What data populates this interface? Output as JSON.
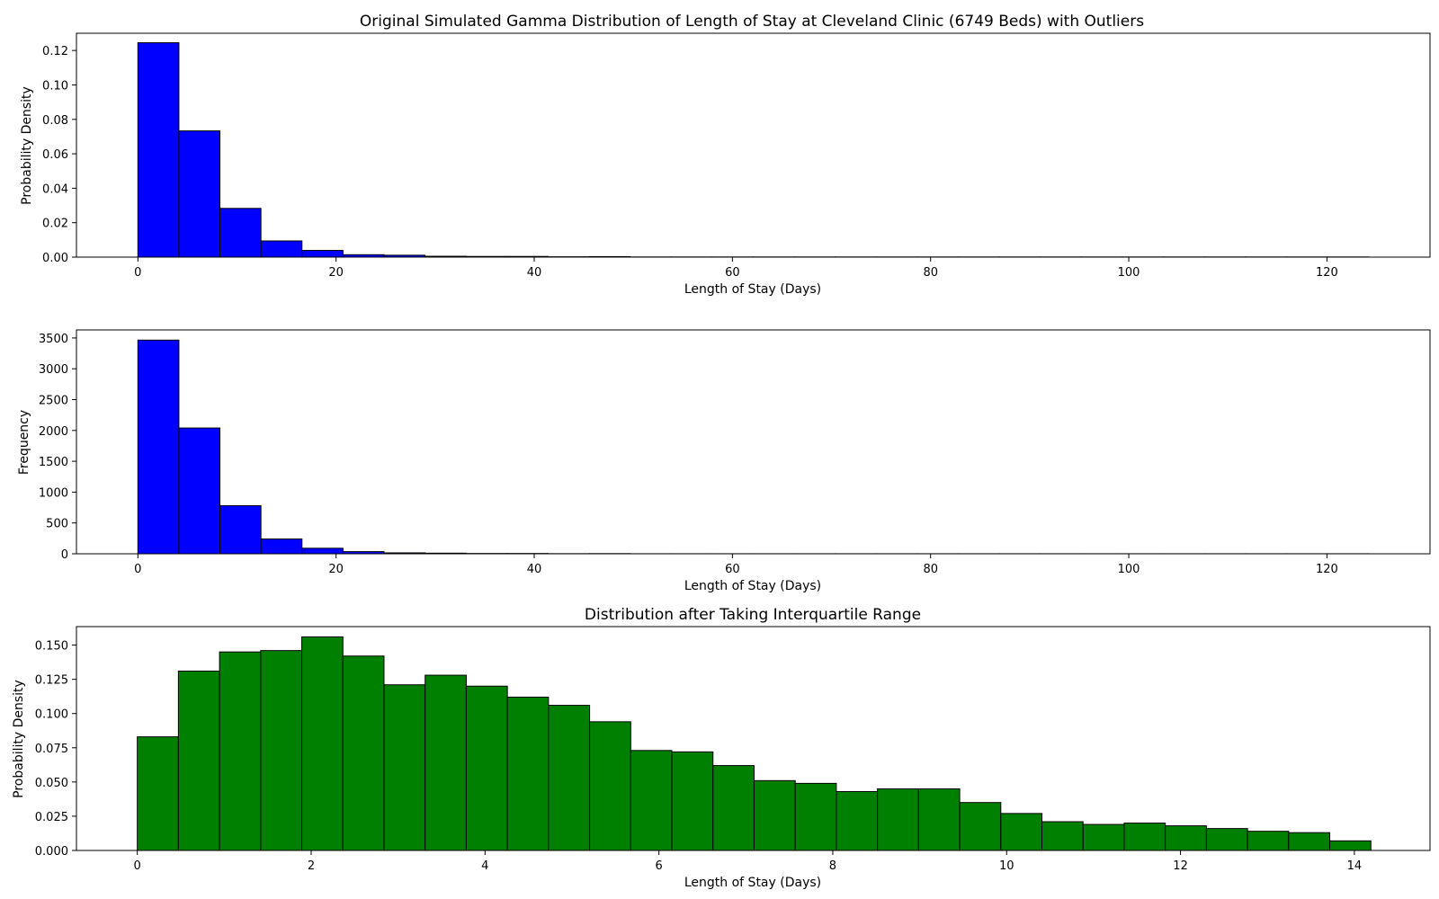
{
  "chart_data": [
    {
      "type": "bar",
      "title": "Original Simulated Gamma Distribution of Length of Stay at Cleveland Clinic (6749 Beds) with Outliers",
      "xlabel": "Length of Stay (Days)",
      "ylabel": "Probability Density",
      "xlim": [
        -6.2,
        130.4
      ],
      "ylim": [
        0,
        0.13
      ],
      "xticks": [
        0,
        20,
        40,
        60,
        80,
        100,
        120
      ],
      "yticks": [
        0.0,
        0.02,
        0.04,
        0.06,
        0.08,
        0.1,
        0.12
      ],
      "ytick_labels": [
        "0.00",
        "0.02",
        "0.04",
        "0.06",
        "0.08",
        "0.10",
        "0.12"
      ],
      "bin_start": 0,
      "bin_width": 4.14,
      "values": [
        0.1245,
        0.0733,
        0.0283,
        0.0094,
        0.0039,
        0.0014,
        0.0011,
        0.0005,
        0.0004,
        0.0004,
        0.0002,
        0.0003,
        0.0001,
        0.0001,
        0.0001,
        0.0001,
        0.0001,
        0.0001,
        0.0001,
        0.0001,
        0.0001,
        0.0001,
        0.0001,
        0.0001,
        0.0001,
        0.0001,
        0.0001,
        0.0001,
        0.0001,
        0.0001
      ],
      "color": "#0000ff",
      "edgecolor": "#000000",
      "grid": false
    },
    {
      "type": "bar",
      "title": "",
      "xlabel": "Length of Stay (Days)",
      "ylabel": "Frequency",
      "xlim": [
        -6.2,
        130.4
      ],
      "ylim": [
        0,
        3630
      ],
      "xticks": [
        0,
        20,
        40,
        60,
        80,
        100,
        120
      ],
      "yticks": [
        0,
        500,
        1000,
        1500,
        2000,
        2500,
        3000,
        3500
      ],
      "ytick_labels": [
        "0",
        "500",
        "1000",
        "1500",
        "2000",
        "2500",
        "3000",
        "3500"
      ],
      "bin_start": 0,
      "bin_width": 4.14,
      "values": [
        3465,
        2040,
        780,
        240,
        90,
        35,
        15,
        10,
        5,
        5,
        2,
        3,
        1,
        1,
        1,
        1,
        1,
        1,
        1,
        1,
        1,
        1,
        1,
        1,
        1,
        1,
        1,
        1,
        1,
        1
      ],
      "color": "#0000ff",
      "edgecolor": "#000000",
      "grid": false
    },
    {
      "type": "bar",
      "title": "Distribution after Taking Interquartile Range",
      "xlabel": "Length of Stay (Days)",
      "ylabel": "Probability Density",
      "xlim": [
        -0.7,
        14.87
      ],
      "ylim": [
        0,
        0.1635
      ],
      "xticks": [
        0,
        2,
        4,
        6,
        8,
        10,
        12,
        14
      ],
      "yticks": [
        0.0,
        0.025,
        0.05,
        0.075,
        0.1,
        0.125,
        0.15
      ],
      "ytick_labels": [
        "0.000",
        "0.025",
        "0.050",
        "0.075",
        "0.100",
        "0.125",
        "0.150"
      ],
      "bin_start": 0,
      "bin_width": 0.473,
      "values": [
        0.083,
        0.131,
        0.145,
        0.146,
        0.156,
        0.142,
        0.121,
        0.128,
        0.12,
        0.112,
        0.106,
        0.094,
        0.073,
        0.072,
        0.062,
        0.051,
        0.049,
        0.043,
        0.045,
        0.045,
        0.035,
        0.027,
        0.021,
        0.019,
        0.02,
        0.018,
        0.016,
        0.014,
        0.013,
        0.007
      ],
      "color": "#008000",
      "edgecolor": "#000000",
      "grid": false
    }
  ]
}
